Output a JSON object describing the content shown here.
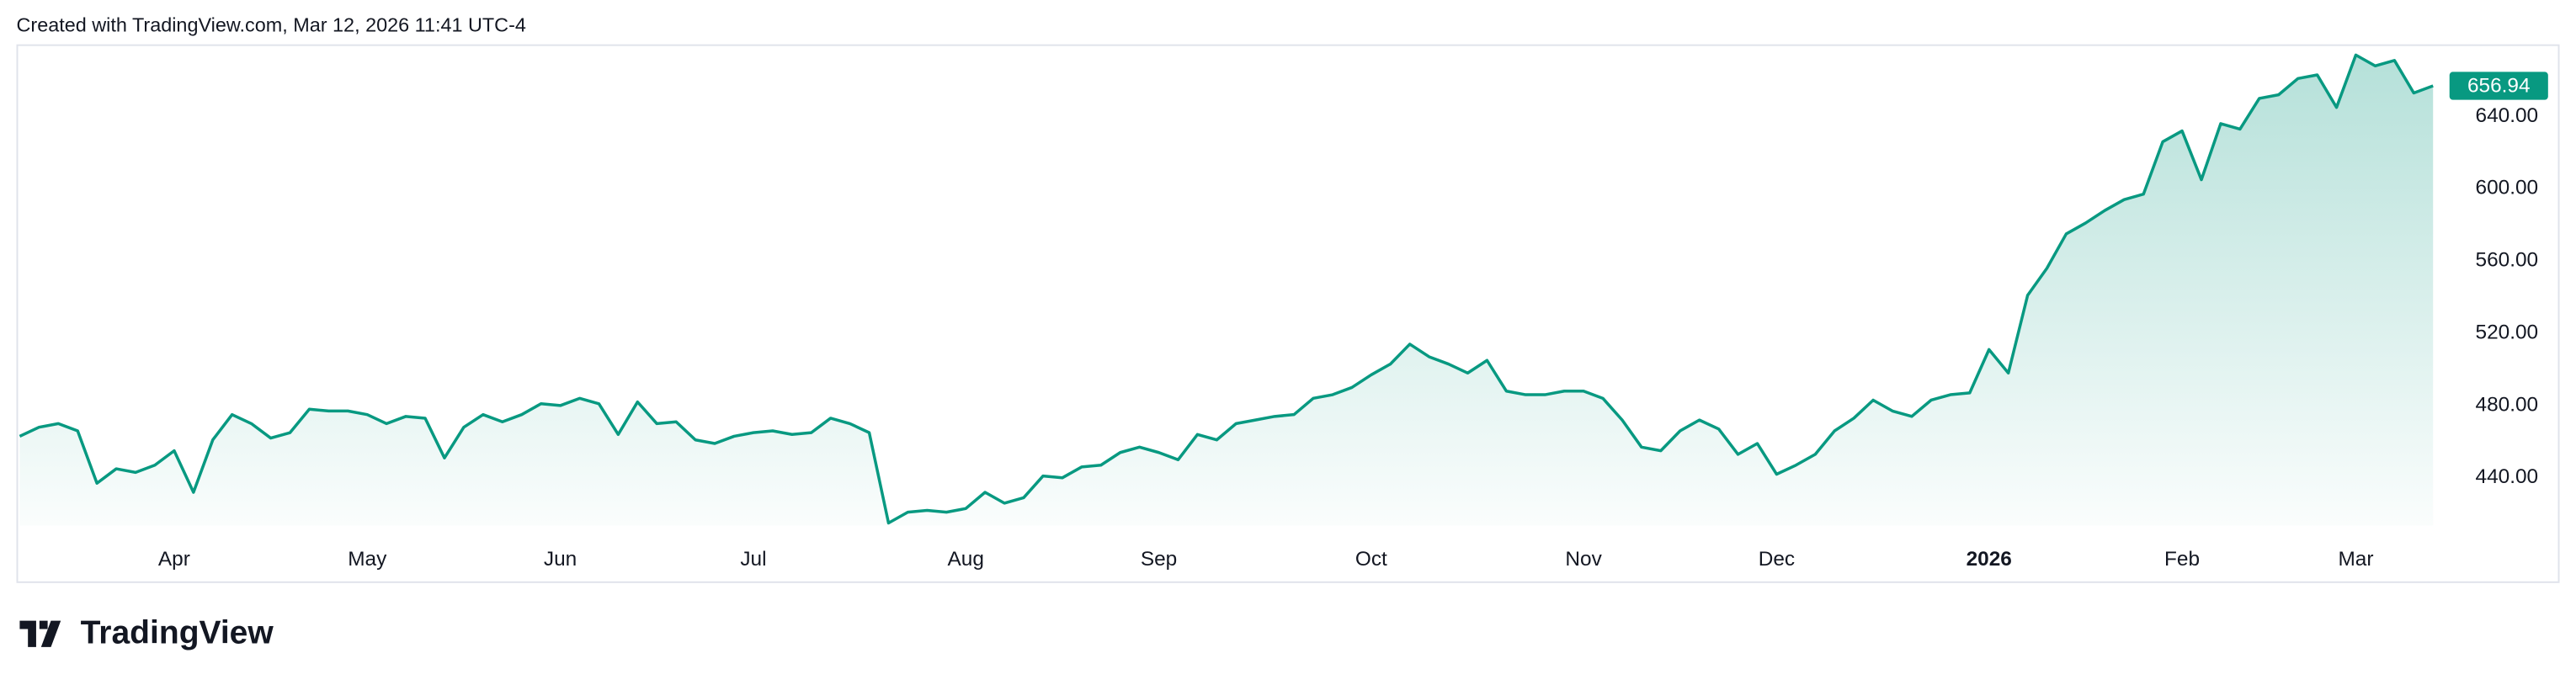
{
  "header": {
    "text": "Created with TradingView.com, Mar 12, 2026 11:41 UTC-4"
  },
  "footer": {
    "logo": "TradingView"
  },
  "chart_data": {
    "type": "area",
    "categories": [
      null,
      null,
      null,
      null,
      null,
      null,
      null,
      null,
      "Apr",
      null,
      null,
      null,
      null,
      null,
      null,
      null,
      null,
      null,
      "May",
      null,
      null,
      null,
      null,
      null,
      null,
      null,
      null,
      null,
      "Jun",
      null,
      null,
      null,
      null,
      null,
      null,
      null,
      null,
      null,
      "Jul",
      null,
      null,
      null,
      null,
      null,
      null,
      null,
      null,
      null,
      null,
      "Aug",
      null,
      null,
      null,
      null,
      null,
      null,
      null,
      null,
      null,
      "Sep",
      null,
      null,
      null,
      null,
      null,
      null,
      null,
      null,
      null,
      null,
      "Oct",
      null,
      null,
      null,
      null,
      null,
      null,
      null,
      null,
      null,
      null,
      "Nov",
      null,
      null,
      null,
      null,
      null,
      null,
      null,
      null,
      null,
      "Dec",
      null,
      null,
      null,
      null,
      null,
      null,
      null,
      null,
      null,
      null,
      "2026",
      null,
      null,
      null,
      null,
      null,
      null,
      null,
      null,
      null,
      "Feb",
      null,
      null,
      null,
      null,
      null,
      null,
      null,
      null,
      "Mar",
      null,
      null,
      null,
      null
    ],
    "series": [
      {
        "color": "#089981",
        "values": [
          463,
          468,
          470,
          466,
          437,
          445,
          443,
          447,
          455,
          432,
          461,
          475,
          470,
          462,
          465,
          478,
          477,
          477,
          475,
          470,
          474,
          473,
          451,
          468,
          475,
          471,
          475,
          481,
          480,
          484,
          481,
          464,
          482,
          470,
          471,
          461,
          459,
          463,
          465,
          466,
          464,
          465,
          473,
          470,
          465,
          415,
          421,
          422,
          421,
          423,
          432,
          426,
          429,
          441,
          440,
          446,
          447,
          454,
          457,
          454,
          450,
          464,
          461,
          470,
          472,
          474,
          475,
          484,
          486,
          490,
          497,
          503,
          514,
          507,
          503,
          498,
          505,
          488,
          486,
          486,
          488,
          488,
          484,
          472,
          457,
          455,
          466,
          472,
          467,
          453,
          459,
          442,
          447,
          453,
          466,
          473,
          483,
          477,
          474,
          483,
          486,
          487,
          511,
          498,
          541,
          556,
          575,
          581,
          588,
          594,
          597,
          626,
          632,
          605,
          636,
          633,
          650,
          652,
          661,
          663,
          645,
          674,
          668,
          671,
          653,
          656.94
        ]
      }
    ],
    "ylim": [
      413.6,
      679
    ],
    "yticks": [
      {
        "value": 440,
        "label": "440.00"
      },
      {
        "value": 480,
        "label": "480.00"
      },
      {
        "value": 520,
        "label": "520.00"
      },
      {
        "value": 560,
        "label": "560.00"
      },
      {
        "value": 600,
        "label": "600.00"
      },
      {
        "value": 640,
        "label": "640.00"
      }
    ],
    "grid": false,
    "last_price_label": true
  }
}
